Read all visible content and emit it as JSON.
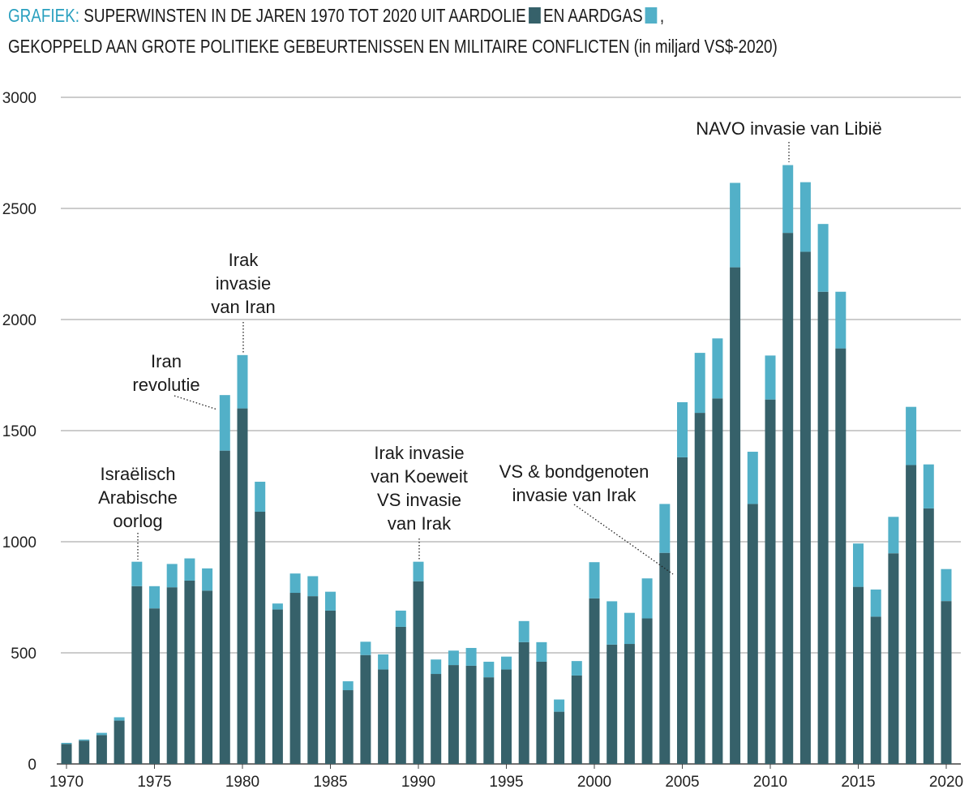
{
  "title": {
    "prefix": "GRAFIEK:",
    "line1_a": "SUPERWINSTEN IN DE JAREN 1970 TOT 2020 UIT AARDOLIE",
    "line1_b": "EN AARDGAS",
    "line1_c": ",",
    "line2": "GEKOPPELD AAN GROTE POLITIEKE GEBEURTENISSEN EN MILITAIRE CONFLICTEN (in miljard VS$-2020)"
  },
  "colors": {
    "oil": "#36616a",
    "gas": "#52b0c8",
    "accent": "#2aa0bf",
    "grid": "#9a9a9a"
  },
  "chart_data": {
    "type": "bar",
    "stacked": true,
    "ylim": [
      0,
      3000
    ],
    "yticks": [
      0,
      500,
      1000,
      1500,
      2000,
      2500,
      3000
    ],
    "xticks": [
      1970,
      1975,
      1980,
      1985,
      1990,
      1995,
      2000,
      2005,
      2010,
      2015,
      2020
    ],
    "grid": "horizontal",
    "categories": [
      1970,
      1971,
      1972,
      1973,
      1974,
      1975,
      1976,
      1977,
      1978,
      1979,
      1980,
      1981,
      1982,
      1983,
      1984,
      1985,
      1986,
      1987,
      1988,
      1989,
      1990,
      1991,
      1992,
      1993,
      1994,
      1995,
      1996,
      1997,
      1998,
      1999,
      2000,
      2001,
      2002,
      2003,
      2004,
      2005,
      2006,
      2007,
      2008,
      2009,
      2010,
      2011,
      2012,
      2013,
      2014,
      2015,
      2016,
      2017,
      2018,
      2019,
      2020
    ],
    "series": [
      {
        "name": "AARDOLIE",
        "values": [
          90,
          105,
          130,
          195,
          800,
          700,
          795,
          825,
          780,
          1410,
          1600,
          1135,
          695,
          770,
          755,
          690,
          332,
          490,
          425,
          617,
          822,
          405,
          445,
          442,
          390,
          425,
          548,
          460,
          235,
          398,
          745,
          537,
          540,
          655,
          950,
          1380,
          1580,
          1645,
          2235,
          1170,
          1640,
          2390,
          2305,
          2125,
          1870,
          797,
          663,
          948,
          1345,
          1150,
          733
        ]
      },
      {
        "name": "AARDGAS",
        "values": [
          5,
          5,
          10,
          15,
          110,
          100,
          105,
          100,
          100,
          250,
          240,
          135,
          27,
          87,
          90,
          85,
          40,
          60,
          68,
          73,
          88,
          65,
          65,
          80,
          70,
          58,
          95,
          88,
          55,
          65,
          163,
          195,
          140,
          180,
          220,
          248,
          270,
          270,
          380,
          235,
          198,
          305,
          313,
          305,
          255,
          195,
          122,
          164,
          262,
          198,
          144
        ]
      }
    ],
    "annotations": [
      {
        "year": 1974,
        "lines": [
          "Israëlisch",
          "Arabische",
          "oorlog"
        ]
      },
      {
        "year": 1979,
        "lines": [
          "Iran",
          "revolutie"
        ]
      },
      {
        "year": 1980,
        "lines": [
          "Irak",
          "invasie",
          "van Iran"
        ]
      },
      {
        "year": 1990,
        "lines": [
          "Irak invasie",
          "van Koeweit",
          "VS invasie",
          "van Irak"
        ]
      },
      {
        "year": 2003,
        "lines": [
          "VS & bondgenoten",
          "invasie van Irak"
        ]
      },
      {
        "year": 2011,
        "lines": [
          "NAVO invasie van Libië"
        ]
      }
    ]
  }
}
